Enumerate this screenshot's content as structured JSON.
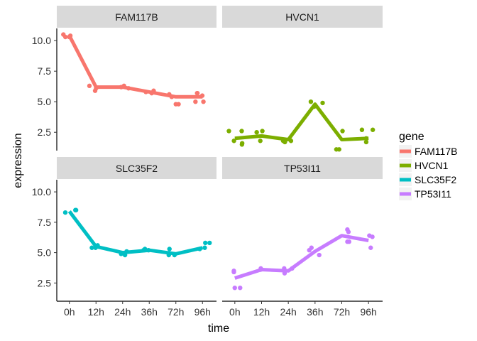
{
  "chart_data": {
    "type": "line",
    "facet": "gene",
    "xlabel": "time",
    "ylabel": "expression",
    "categories": [
      "0h",
      "12h",
      "24h",
      "36h",
      "72h",
      "96h"
    ],
    "ylim": [
      1.0,
      11.0
    ],
    "yticks": [
      2.5,
      5.0,
      7.5,
      10.0
    ],
    "yticklabels": [
      "2.5",
      "5.0",
      "7.5",
      "10.0"
    ],
    "legend": {
      "title": "gene",
      "position": "right"
    },
    "series": [
      {
        "name": "FAM117B",
        "color": "#F8766D",
        "values": [
          10.4,
          6.2,
          6.2,
          5.8,
          5.4,
          5.4
        ],
        "points": [
          [
            0,
            10.3
          ],
          [
            0,
            10.4
          ],
          [
            0,
            10.5
          ],
          [
            0,
            10.3
          ],
          [
            1,
            5.9
          ],
          [
            1,
            6.1
          ],
          [
            1,
            6.3
          ],
          [
            2,
            6.1
          ],
          [
            2,
            6.3
          ],
          [
            2,
            6.2
          ],
          [
            3,
            5.8
          ],
          [
            3,
            5.9
          ],
          [
            3,
            5.7
          ],
          [
            4,
            5.6
          ],
          [
            4,
            4.8
          ],
          [
            4,
            5.4
          ],
          [
            4,
            4.8
          ],
          [
            5,
            5.7
          ],
          [
            5,
            5.0
          ],
          [
            5,
            5.5
          ],
          [
            5,
            5.7
          ],
          [
            5,
            5.0
          ]
        ]
      },
      {
        "name": "HVCN1",
        "color": "#7CAE00",
        "values": [
          2.0,
          2.2,
          1.9,
          4.8,
          1.9,
          2.0
        ],
        "points": [
          [
            0,
            2.6
          ],
          [
            0,
            1.6
          ],
          [
            0,
            2.6
          ],
          [
            0,
            1.8
          ],
          [
            0,
            1.5
          ],
          [
            1,
            2.5
          ],
          [
            1,
            1.8
          ],
          [
            1,
            2.6
          ],
          [
            2,
            1.8
          ],
          [
            2,
            1.7
          ],
          [
            2,
            1.8
          ],
          [
            3,
            4.9
          ],
          [
            3,
            4.6
          ],
          [
            3,
            5.0
          ],
          [
            4,
            2.6
          ],
          [
            4,
            1.1
          ],
          [
            4,
            1.1
          ],
          [
            5,
            2.7
          ],
          [
            5,
            1.7
          ],
          [
            5,
            2.0
          ],
          [
            5,
            2.7
          ]
        ]
      },
      {
        "name": "SLC35F2",
        "color": "#00BFC4",
        "values": [
          8.4,
          5.5,
          5.0,
          5.2,
          4.9,
          5.4
        ],
        "points": [
          [
            0,
            8.5
          ],
          [
            0,
            8.3
          ],
          [
            0,
            8.5
          ],
          [
            1,
            5.4
          ],
          [
            1,
            5.4
          ],
          [
            1,
            5.6
          ],
          [
            2,
            4.9
          ],
          [
            2,
            5.1
          ],
          [
            2,
            4.8
          ],
          [
            3,
            5.2
          ],
          [
            3,
            5.3
          ],
          [
            3,
            5.2
          ],
          [
            4,
            5.3
          ],
          [
            4,
            4.8
          ],
          [
            4,
            4.8
          ],
          [
            5,
            5.8
          ],
          [
            5,
            5.4
          ],
          [
            5,
            5.8
          ],
          [
            5,
            5.3
          ]
        ]
      },
      {
        "name": "TP53I11",
        "color": "#C77CFF",
        "values": [
          2.9,
          3.6,
          3.5,
          5.1,
          6.4,
          6.0
        ],
        "points": [
          [
            0,
            3.5
          ],
          [
            0,
            2.1
          ],
          [
            0,
            3.4
          ],
          [
            0,
            2.1
          ],
          [
            1,
            3.7
          ],
          [
            1,
            3.6
          ],
          [
            2,
            3.3
          ],
          [
            2,
            3.7
          ],
          [
            2,
            3.7
          ],
          [
            3,
            5.2
          ],
          [
            3,
            5.4
          ],
          [
            3,
            4.8
          ],
          [
            4,
            6.9
          ],
          [
            4,
            5.9
          ],
          [
            4,
            6.7
          ],
          [
            4,
            5.9
          ],
          [
            5,
            6.3
          ],
          [
            5,
            5.4
          ],
          [
            5,
            6.4
          ]
        ]
      }
    ]
  }
}
